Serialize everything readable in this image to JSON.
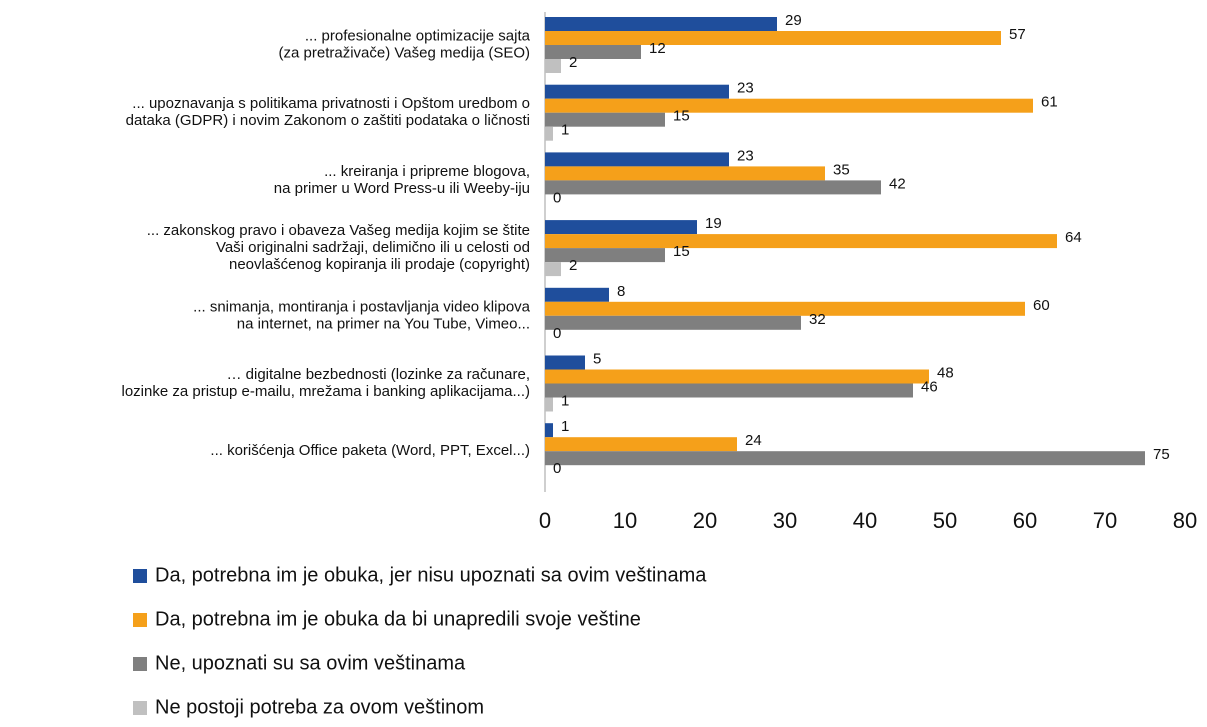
{
  "chart_data": {
    "type": "hbar",
    "categories": [
      [
        "... profesionalne optimizacije sajta",
        "(za pretraživače) Vašeg medija (SEO)"
      ],
      [
        "... upoznavanja s politikama privatnosti i Opštom uredbom o",
        "dataka (GDPR) i novim Zakonom o zaštiti podataka o ličnosti"
      ],
      [
        "... kreiranja i pripreme blogova,",
        "na primer u Word Press-u ili Weeby-iju"
      ],
      [
        "... zakonskog pravo i obaveza Vašeg medija kojim se štite",
        "Vaši originalni sadržaji, delimično ili u celosti od",
        "neovlašćenog kopiranja ili prodaje (copyright)"
      ],
      [
        "... snimanja, montiranja i postavljanja video klipova",
        "na internet, na primer na You Tube, Vimeo..."
      ],
      [
        "… digitalne bezbednosti (lozinke za računare,",
        "lozinke za pristup e-mailu, mrežama i banking aplikacijama...)"
      ],
      [
        "... korišćenja Office paketa (Word, PPT, Excel...)"
      ]
    ],
    "series": [
      {
        "name": "Da, potrebna im je obuka, jer nisu upoznati sa ovim veštinama",
        "color": "#1f4e9c",
        "values": [
          29,
          23,
          23,
          19,
          8,
          5,
          1
        ]
      },
      {
        "name": "Da, potrebna im je obuka da bi unapredili svoje veštine",
        "color": "#f5a01a",
        "values": [
          57,
          61,
          35,
          64,
          60,
          48,
          24
        ]
      },
      {
        "name": "Ne, upoznati su sa ovim veštinama",
        "color": "#7f7f7f",
        "values": [
          12,
          15,
          42,
          15,
          32,
          46,
          75
        ]
      },
      {
        "name": "Ne postoji potreba za ovom veštinom",
        "color": "#c0c0c0",
        "values": [
          2,
          1,
          0,
          2,
          0,
          1,
          0
        ]
      }
    ],
    "xlim": [
      0,
      80
    ],
    "xticks": [
      0,
      10,
      20,
      30,
      40,
      50,
      60,
      70,
      80
    ]
  }
}
